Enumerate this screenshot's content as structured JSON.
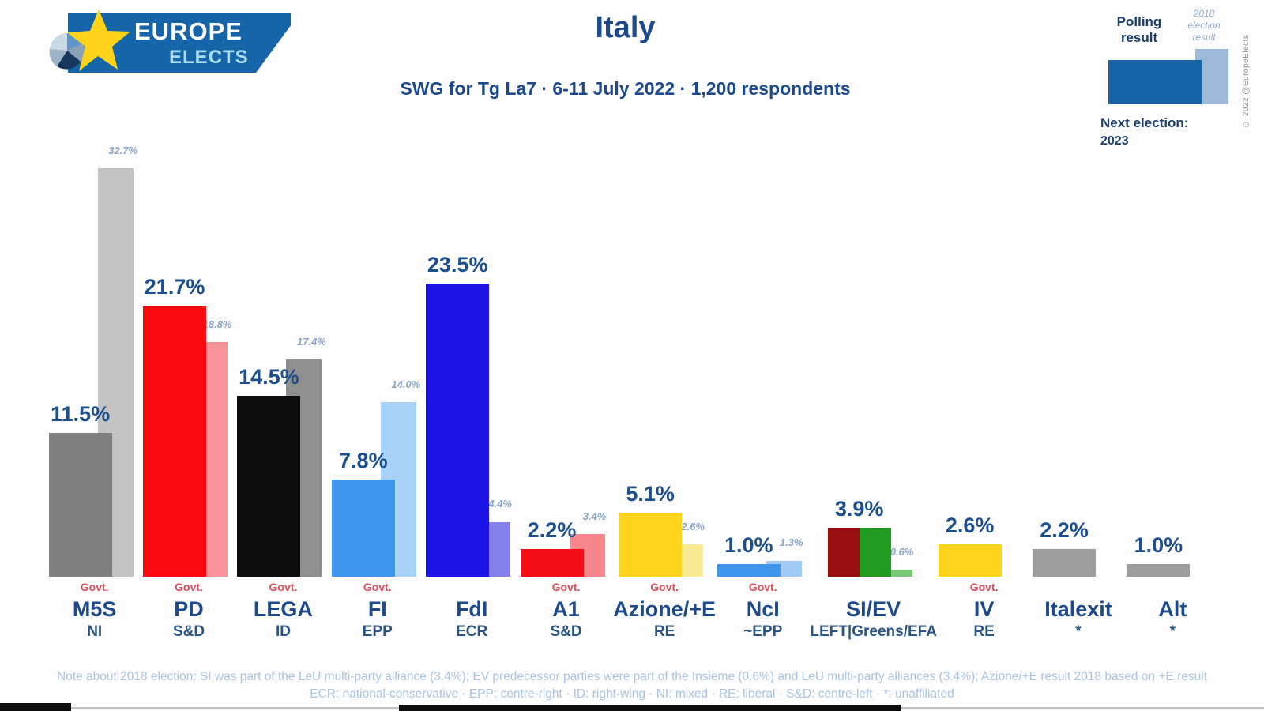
{
  "header": {
    "brand": {
      "line1": "EUROPE",
      "line2": "ELECTS"
    },
    "title": "Italy",
    "subtitle": "SWG for Tg La7 · 6-11 July 2022 · 1,200 respondents",
    "legend": {
      "polling_label": "Polling result",
      "election_label": "2018 election result",
      "next_election_label": "Next election:",
      "next_election_year": "2023"
    },
    "copyright": "© 2022 @EuropeElects"
  },
  "colors": {
    "accent_navy": "#1c4a8c",
    "value_label_navy": "#1c4f8e",
    "election_label_blue": "#8aa5c6",
    "govt_red": "#e04b5c",
    "banner_blue": "#1565a8",
    "star_yellow": "#ffd31a",
    "legend_polling": "#1565a8",
    "legend_election": "#9cb9d9",
    "footer_blue": "#a9c4e1"
  },
  "chart_data": {
    "type": "bar",
    "title": "Italy",
    "subtitle": "SWG for Tg La7 · 6-11 July 2022 · 1,200 respondents",
    "ylim": [
      0,
      35
    ],
    "grid": false,
    "legend_position": "top-right",
    "series": [
      {
        "name": "Polling result"
      },
      {
        "name": "2018 election result"
      }
    ],
    "govt_label": "Govt.",
    "parties": [
      {
        "abbr": "M5S",
        "group": "NI",
        "govt": true,
        "polling": 11.5,
        "polling_label": "11.5%",
        "election2018": 32.7,
        "election2018_label": "32.7%",
        "color": "#7f7f7f",
        "color2018": "#c3c3c3"
      },
      {
        "abbr": "PD",
        "group": "S&D",
        "govt": true,
        "polling": 21.7,
        "polling_label": "21.7%",
        "election2018": 18.8,
        "election2018_label": "18.8%",
        "color": "#fa0a10",
        "color2018": "#fa9399"
      },
      {
        "abbr": "LEGA",
        "group": "ID",
        "govt": true,
        "polling": 14.5,
        "polling_label": "14.5%",
        "election2018": 17.4,
        "election2018_label": "17.4%",
        "color": "#0d0d0d",
        "color2018": "#8f8f8f"
      },
      {
        "abbr": "FI",
        "group": "EPP",
        "govt": true,
        "polling": 7.8,
        "polling_label": "7.8%",
        "election2018": 14.0,
        "election2018_label": "14.0%",
        "color": "#3f97ed",
        "color2018": "#a7d1f6"
      },
      {
        "abbr": "FdI",
        "group": "ECR",
        "govt": false,
        "polling": 23.5,
        "polling_label": "23.5%",
        "election2018": 4.4,
        "election2018_label": "4.4%",
        "color": "#1c13e6",
        "color2018": "#8581ea"
      },
      {
        "abbr": "A1",
        "group": "S&D",
        "govt": true,
        "polling": 2.2,
        "polling_label": "2.2%",
        "election2018": 3.4,
        "election2018_label": "3.4%",
        "color": "#f20d17",
        "color2018": "#f8868d"
      },
      {
        "abbr": "Azione/+E",
        "group": "RE",
        "govt": true,
        "polling": 5.1,
        "polling_label": "5.1%",
        "election2018": 2.6,
        "election2018_label": "2.6%",
        "color": "#fbd41b",
        "color2018": "#fae993"
      },
      {
        "abbr": "NcI",
        "group": "~EPP",
        "govt": true,
        "polling": 1.0,
        "polling_label": "1.0%",
        "election2018": 1.3,
        "election2018_label": "1.3%",
        "color": "#3f97ed",
        "color2018": "#a0cbf4"
      },
      {
        "abbr": "SI/EV",
        "group": "LEFT|Greens/EFA",
        "govt": false,
        "polling": 3.9,
        "polling_label": "3.9%",
        "election2018": 0.6,
        "election2018_label": "0.6%",
        "color": "#9a1010",
        "color_right": "#1f9a1f",
        "color2018": "#7bc87b"
      },
      {
        "abbr": "IV",
        "group": "RE",
        "govt": true,
        "polling": 2.6,
        "polling_label": "2.6%",
        "election2018": null,
        "election2018_label": null,
        "color": "#fbd41b"
      },
      {
        "abbr": "Italexit",
        "group": "*",
        "govt": false,
        "polling": 2.2,
        "polling_label": "2.2%",
        "election2018": null,
        "election2018_label": null,
        "color": "#9d9d9d"
      },
      {
        "abbr": "Alt",
        "group": "*",
        "govt": false,
        "polling": 1.0,
        "polling_label": "1.0%",
        "election2018": null,
        "election2018_label": null,
        "color": "#9d9d9d"
      }
    ]
  },
  "footer": {
    "note1": "Note about 2018 election: SI was part of the LeU multi-party alliance (3.4%); EV predecessor parties were part of the Insieme (0.6%) and LeU multi-party alliances (3.4%); Azione/+E result 2018 based on +E result",
    "note2": "ECR: national-conservative · EPP: centre-right · ID: right-wing · NI: mixed · RE: liberal · S&D: centre-left · *: unaffiliated"
  }
}
